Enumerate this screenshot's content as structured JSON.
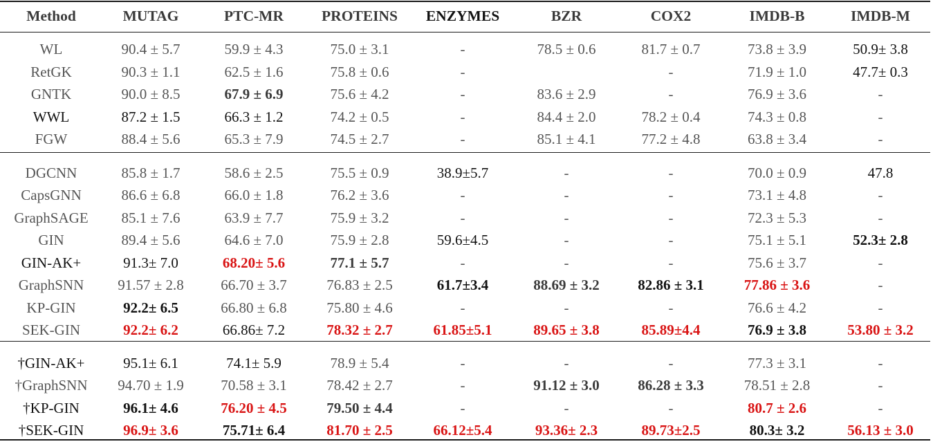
{
  "table": {
    "headers": [
      {
        "label": "Method",
        "style": ""
      },
      {
        "label": "MUTAG",
        "style": ""
      },
      {
        "label": "PTC-MR",
        "style": ""
      },
      {
        "label": "PROTEINS",
        "style": ""
      },
      {
        "label": "ENZYMES",
        "style": "hk"
      },
      {
        "label": "BZR",
        "style": ""
      },
      {
        "label": "COX2",
        "style": ""
      },
      {
        "label": "IMDB-B",
        "style": ""
      },
      {
        "label": "IMDB-M",
        "style": ""
      }
    ],
    "sections": [
      {
        "rows": [
          {
            "cells": [
              {
                "v": "WL",
                "s": "g"
              },
              {
                "v": "90.4 ± 5.7",
                "s": "g"
              },
              {
                "v": "59.9 ± 4.3",
                "s": "g"
              },
              {
                "v": "75.0 ± 3.1",
                "s": "g"
              },
              {
                "v": "-",
                "s": "g"
              },
              {
                "v": "78.5 ± 0.6",
                "s": "g"
              },
              {
                "v": "81.7 ± 0.7",
                "s": "g"
              },
              {
                "v": "73.8 ± 3.9",
                "s": "g"
              },
              {
                "v": "50.9± 3.8",
                "s": "k"
              }
            ]
          },
          {
            "cells": [
              {
                "v": "RetGK",
                "s": "g"
              },
              {
                "v": "90.3 ± 1.1",
                "s": "g"
              },
              {
                "v": "62.5 ± 1.6",
                "s": "g"
              },
              {
                "v": "75.8 ± 0.6",
                "s": "g"
              },
              {
                "v": "-",
                "s": "g"
              },
              {
                "v": "",
                "s": "g"
              },
              {
                "v": "-",
                "s": "g"
              },
              {
                "v": "71.9 ± 1.0",
                "s": "g"
              },
              {
                "v": "47.7± 0.3",
                "s": "k"
              }
            ]
          },
          {
            "cells": [
              {
                "v": "GNTK",
                "s": "g"
              },
              {
                "v": "90.0 ± 8.5",
                "s": "g"
              },
              {
                "v": "67.9 ± 6.9",
                "s": "d"
              },
              {
                "v": "75.6 ± 4.2",
                "s": "g"
              },
              {
                "v": "-",
                "s": "g"
              },
              {
                "v": "83.6 ± 2.9",
                "s": "g"
              },
              {
                "v": "-",
                "s": "g"
              },
              {
                "v": "76.9 ± 3.6",
                "s": "g"
              },
              {
                "v": "-",
                "s": "g"
              }
            ]
          },
          {
            "cells": [
              {
                "v": "WWL",
                "s": "k"
              },
              {
                "v": "87.2 ± 1.5",
                "s": "k"
              },
              {
                "v": "66.3 ± 1.2",
                "s": "k"
              },
              {
                "v": "74.2 ± 0.5",
                "s": "g"
              },
              {
                "v": "-",
                "s": "g"
              },
              {
                "v": "84.4 ± 2.0",
                "s": "g"
              },
              {
                "v": "78.2 ± 0.4",
                "s": "g"
              },
              {
                "v": "74.3 ± 0.8",
                "s": "g"
              },
              {
                "v": "-",
                "s": "g"
              }
            ]
          },
          {
            "cells": [
              {
                "v": "FGW",
                "s": "g"
              },
              {
                "v": "88.4 ± 5.6",
                "s": "g"
              },
              {
                "v": "65.3 ± 7.9",
                "s": "g"
              },
              {
                "v": "74.5 ± 2.7",
                "s": "g"
              },
              {
                "v": "-",
                "s": "g"
              },
              {
                "v": "85.1 ± 4.1",
                "s": "g"
              },
              {
                "v": "77.2 ± 4.8",
                "s": "g"
              },
              {
                "v": "63.8 ± 3.4",
                "s": "g"
              },
              {
                "v": "-",
                "s": "g"
              }
            ]
          }
        ]
      },
      {
        "rows": [
          {
            "cells": [
              {
                "v": "DGCNN",
                "s": "g"
              },
              {
                "v": "85.8 ± 1.7",
                "s": "g"
              },
              {
                "v": "58.6 ± 2.5",
                "s": "g"
              },
              {
                "v": "75.5 ± 0.9",
                "s": "g"
              },
              {
                "v": "38.9±5.7",
                "s": "k"
              },
              {
                "v": "-",
                "s": "g"
              },
              {
                "v": "-",
                "s": "g"
              },
              {
                "v": "70.0 ± 0.9",
                "s": "g"
              },
              {
                "v": "47.8",
                "s": "k"
              }
            ]
          },
          {
            "cells": [
              {
                "v": "CapsGNN",
                "s": "g"
              },
              {
                "v": "86.6 ± 6.8",
                "s": "g"
              },
              {
                "v": "66.0 ± 1.8",
                "s": "g"
              },
              {
                "v": "76.2 ± 3.6",
                "s": "g"
              },
              {
                "v": "-",
                "s": "g"
              },
              {
                "v": "-",
                "s": "g"
              },
              {
                "v": "-",
                "s": "g"
              },
              {
                "v": "73.1 ± 4.8",
                "s": "g"
              },
              {
                "v": "-",
                "s": "g"
              }
            ]
          },
          {
            "cells": [
              {
                "v": "GraphSAGE",
                "s": "g"
              },
              {
                "v": "85.1 ± 7.6",
                "s": "g"
              },
              {
                "v": "63.9 ± 7.7",
                "s": "g"
              },
              {
                "v": "75.9 ± 3.2",
                "s": "g"
              },
              {
                "v": "-",
                "s": "g"
              },
              {
                "v": "-",
                "s": "g"
              },
              {
                "v": "-",
                "s": "g"
              },
              {
                "v": "72.3 ± 5.3",
                "s": "g"
              },
              {
                "v": "-",
                "s": "g"
              }
            ]
          },
          {
            "cells": [
              {
                "v": "GIN",
                "s": "g"
              },
              {
                "v": "89.4 ± 5.6",
                "s": "g"
              },
              {
                "v": "64.6 ± 7.0",
                "s": "g"
              },
              {
                "v": "75.9 ± 2.8",
                "s": "g"
              },
              {
                "v": "59.6±4.5",
                "s": "k"
              },
              {
                "v": "-",
                "s": "g"
              },
              {
                "v": "-",
                "s": "g"
              },
              {
                "v": "75.1 ± 5.1",
                "s": "g"
              },
              {
                "v": "52.3± 2.8",
                "s": "kb"
              }
            ]
          },
          {
            "cells": [
              {
                "v": "GIN-AK+",
                "s": "k"
              },
              {
                "v": "91.3± 7.0",
                "s": "k"
              },
              {
                "v": "68.20± 5.6",
                "s": "r"
              },
              {
                "v": "77.1 ± 5.7",
                "s": "d"
              },
              {
                "v": "-",
                "s": "g"
              },
              {
                "v": "-",
                "s": "g"
              },
              {
                "v": "-",
                "s": "g"
              },
              {
                "v": "75.6 ± 3.7",
                "s": "g"
              },
              {
                "v": "-",
                "s": "g"
              }
            ]
          },
          {
            "cells": [
              {
                "v": "GraphSNN",
                "s": "g"
              },
              {
                "v": "91.57 ± 2.8",
                "s": "g"
              },
              {
                "v": "66.70 ± 3.7",
                "s": "g"
              },
              {
                "v": "76.83 ± 2.5",
                "s": "g"
              },
              {
                "v": "61.7±3.4",
                "s": "kb"
              },
              {
                "v": "88.69 ± 3.2",
                "s": "d"
              },
              {
                "v": "82.86 ± 3.1",
                "s": "kb"
              },
              {
                "v": "77.86 ± 3.6",
                "s": "r"
              },
              {
                "v": "-",
                "s": "g"
              }
            ]
          },
          {
            "cells": [
              {
                "v": "KP-GIN",
                "s": "g"
              },
              {
                "v": "92.2± 6.5",
                "s": "kb"
              },
              {
                "v": "66.80 ± 6.8",
                "s": "g"
              },
              {
                "v": "75.80 ± 4.6",
                "s": "g"
              },
              {
                "v": "-",
                "s": "g"
              },
              {
                "v": "-",
                "s": "g"
              },
              {
                "v": "-",
                "s": "g"
              },
              {
                "v": "76.6 ± 4.2",
                "s": "g"
              },
              {
                "v": "-",
                "s": "g"
              }
            ]
          },
          {
            "cells": [
              {
                "v": "SEK-GIN",
                "s": "g"
              },
              {
                "v": "92.2± 6.2",
                "s": "r"
              },
              {
                "v": "66.86± 7.2",
                "s": "k"
              },
              {
                "v": "78.32 ± 2.7",
                "s": "r"
              },
              {
                "v": "61.85±5.1",
                "s": "r"
              },
              {
                "v": "89.65 ± 3.8",
                "s": "r"
              },
              {
                "v": "85.89±4.4",
                "s": "r"
              },
              {
                "v": "76.9 ± 3.8",
                "s": "kb"
              },
              {
                "v": "53.80 ± 3.2",
                "s": "r"
              }
            ]
          }
        ]
      },
      {
        "rows": [
          {
            "cells": [
              {
                "v": "†GIN-AK+",
                "s": "k"
              },
              {
                "v": "95.1± 6.1",
                "s": "k"
              },
              {
                "v": "74.1± 5.9",
                "s": "k"
              },
              {
                "v": "78.9 ± 5.4",
                "s": "g"
              },
              {
                "v": "-",
                "s": "g"
              },
              {
                "v": "-",
                "s": "g"
              },
              {
                "v": "-",
                "s": "g"
              },
              {
                "v": "77.3 ± 3.1",
                "s": "g"
              },
              {
                "v": "-",
                "s": "g"
              }
            ]
          },
          {
            "cells": [
              {
                "v": "†GraphSNN",
                "s": "g"
              },
              {
                "v": "94.70 ± 1.9",
                "s": "g"
              },
              {
                "v": "70.58 ± 3.1",
                "s": "g"
              },
              {
                "v": "78.42 ± 2.7",
                "s": "g"
              },
              {
                "v": "-",
                "s": "g"
              },
              {
                "v": "91.12 ± 3.0",
                "s": "d"
              },
              {
                "v": "86.28 ± 3.3",
                "s": "d"
              },
              {
                "v": "78.51 ± 2.8",
                "s": "g"
              },
              {
                "v": "-",
                "s": "g"
              }
            ]
          },
          {
            "cells": [
              {
                "v": "†KP-GIN",
                "s": "k"
              },
              {
                "v": "96.1± 4.6",
                "s": "kb"
              },
              {
                "v": "76.20 ± 4.5",
                "s": "r"
              },
              {
                "v": "79.50 ± 4.4",
                "s": "d"
              },
              {
                "v": "-",
                "s": "g"
              },
              {
                "v": "-",
                "s": "g"
              },
              {
                "v": "-",
                "s": "g"
              },
              {
                "v": "80.7 ± 2.6",
                "s": "r"
              },
              {
                "v": "-",
                "s": "g"
              }
            ]
          },
          {
            "cells": [
              {
                "v": "†SEK-GIN",
                "s": "k"
              },
              {
                "v": "96.9± 3.6",
                "s": "r"
              },
              {
                "v": "75.71± 6.4",
                "s": "kb"
              },
              {
                "v": "81.70 ± 2.5",
                "s": "r"
              },
              {
                "v": "66.12±5.4",
                "s": "r"
              },
              {
                "v": "93.36± 2.3",
                "s": "r"
              },
              {
                "v": "89.73±2.5",
                "s": "r"
              },
              {
                "v": "80.3± 3.2",
                "s": "kb"
              },
              {
                "v": "56.13 ± 3.0",
                "s": "r"
              }
            ]
          }
        ]
      }
    ]
  },
  "colors": {
    "highlight_best": "#d91414",
    "text_gray": "#555555",
    "text_black": "#111111"
  }
}
